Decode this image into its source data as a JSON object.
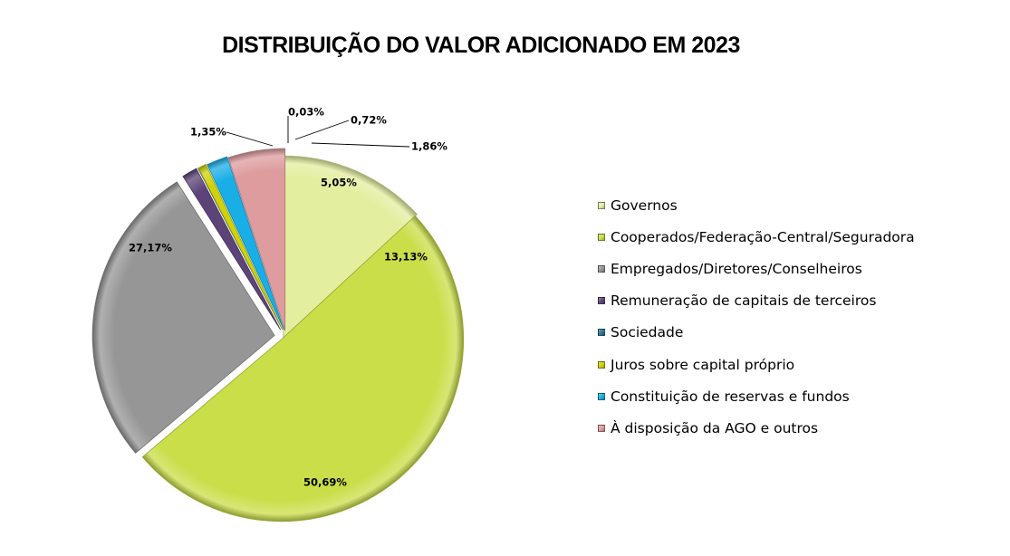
{
  "chart_data": {
    "type": "pie",
    "title": "DISTRIBUIÇÃO DO VALOR ADICIONADO EM 2023",
    "legend_position": "right",
    "slices": [
      {
        "name": "Governos",
        "value": 13.13,
        "label": "13,13%",
        "color": "#e3ee9f"
      },
      {
        "name": "Cooperados/Federação-Central/Seguradora",
        "value": 50.69,
        "label": "50,69%",
        "color": "#c9de48"
      },
      {
        "name": "Empregados/Diretores/Conselheiros",
        "value": 27.17,
        "label": "27,17%",
        "color": "#969696"
      },
      {
        "name": "Remuneração de capitais de terceiros",
        "value": 1.35,
        "label": "1,35%",
        "color": "#5d4478"
      },
      {
        "name": "Sociedade",
        "value": 0.03,
        "label": "0,03%",
        "color": "#2c7891"
      },
      {
        "name": "Juros sobre capital próprio",
        "value": 0.72,
        "label": "0,72%",
        "color": "#d2d20c"
      },
      {
        "name": "Constituição de reservas e fundos",
        "value": 1.86,
        "label": "1,86%",
        "color": "#19aee6"
      },
      {
        "name": "À disposição da AGO e outros",
        "value": 5.05,
        "label": "5,05%",
        "color": "#de9c9e"
      }
    ]
  }
}
